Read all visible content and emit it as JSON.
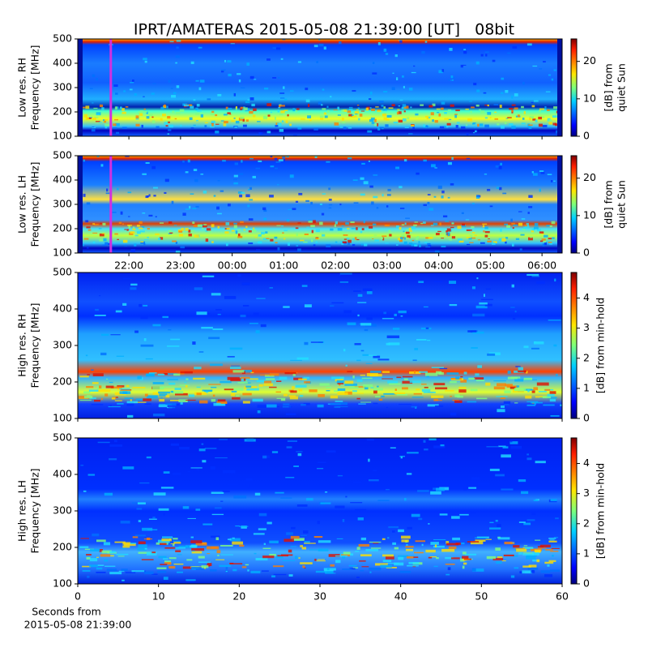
{
  "chart_data": [
    {
      "type": "heatmap",
      "title": "IPRT/AMATERAS 2015-05-08 21:39:00 [UT]   08bit",
      "ylabel": [
        "Low res. RH",
        "Frequency [MHz]"
      ],
      "ylim": [
        100,
        500
      ],
      "yticks": [
        100,
        200,
        300,
        400,
        500
      ],
      "xlim": [
        21.01,
        30.39
      ],
      "marker_x": 21.65,
      "marker_color": "#d030e0",
      "colorbar": {
        "label": [
          "[dB] from",
          "quiet Sun"
        ],
        "lim": [
          0,
          26
        ],
        "ticks": [
          0,
          10,
          20
        ]
      }
    },
    {
      "type": "heatmap",
      "ylabel": [
        "Low res. LH",
        "Frequency [MHz]"
      ],
      "ylim": [
        100,
        500
      ],
      "yticks": [
        100,
        200,
        300,
        400,
        500
      ],
      "xlim": [
        21.01,
        30.39
      ],
      "marker_x": 21.65,
      "marker_color": "#d030e0",
      "xticks": [
        {
          "value": 22,
          "label": "22:00"
        },
        {
          "value": 23,
          "label": "23:00"
        },
        {
          "value": 24,
          "label": "00:00"
        },
        {
          "value": 25,
          "label": "01:00"
        },
        {
          "value": 26,
          "label": "02:00"
        },
        {
          "value": 27,
          "label": "03:00"
        },
        {
          "value": 28,
          "label": "04:00"
        },
        {
          "value": 29,
          "label": "05:00"
        },
        {
          "value": 30,
          "label": "06:00"
        }
      ],
      "colorbar": {
        "label": [
          "[dB] from",
          "quiet Sun"
        ],
        "lim": [
          0,
          26
        ],
        "ticks": [
          0,
          10,
          20
        ]
      }
    },
    {
      "type": "heatmap",
      "ylabel": [
        "High res. RH",
        "Frequency [MHz]"
      ],
      "ylim": [
        100,
        500
      ],
      "yticks": [
        100,
        200,
        300,
        400,
        500
      ],
      "xlim": [
        0,
        60
      ],
      "colorbar": {
        "label": [
          "[dB] from min-hold"
        ],
        "lim": [
          0,
          4.85
        ],
        "ticks": [
          0,
          1,
          2,
          3,
          4
        ]
      }
    },
    {
      "type": "heatmap",
      "ylabel": [
        "High res. LH",
        "Frequency [MHz]"
      ],
      "ylim": [
        100,
        500
      ],
      "yticks": [
        100,
        200,
        300,
        400,
        500
      ],
      "xlim": [
        0,
        60
      ],
      "xticks": [
        0,
        10,
        20,
        30,
        40,
        50,
        60
      ],
      "xlabel": [
        "Seconds from",
        "2015-05-08 21:39:00"
      ],
      "colorbar": {
        "label": [
          "[dB] from min-hold"
        ],
        "lim": [
          0,
          4.85
        ],
        "ticks": [
          0,
          1,
          2,
          3,
          4
        ]
      }
    }
  ]
}
